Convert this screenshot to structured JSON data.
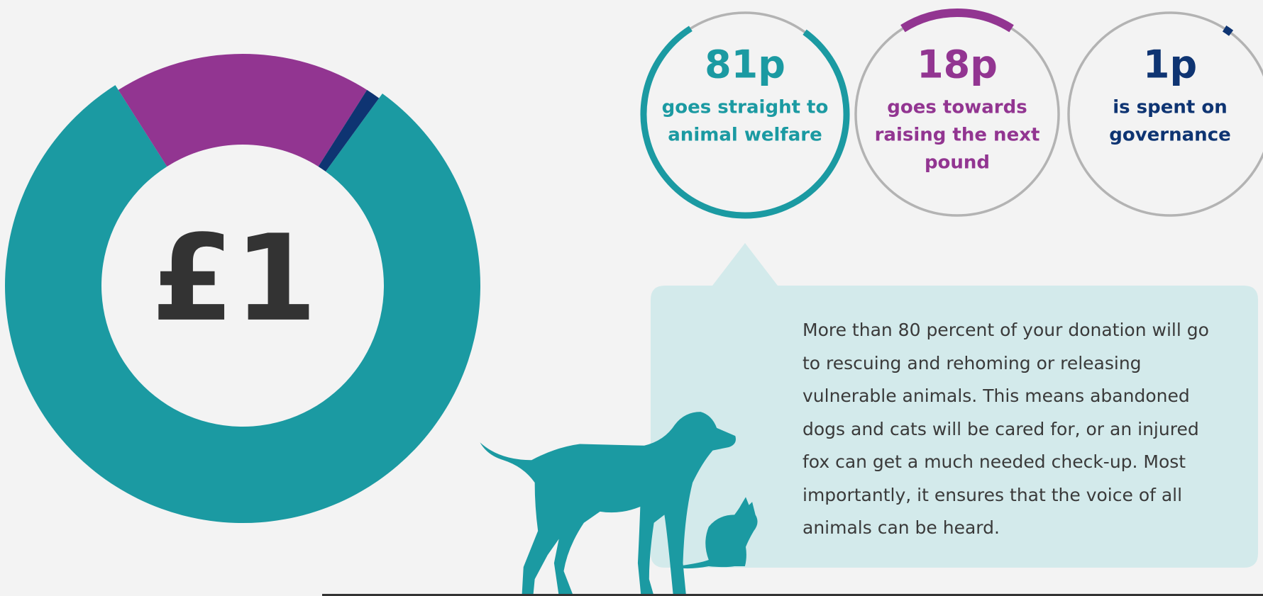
{
  "chart_data": {
    "type": "donut",
    "center_label": "£1",
    "categories": [
      [
        "goes straight to",
        "animal welfare"
      ],
      [
        "goes towards",
        "raising the next",
        "pound"
      ],
      [
        "is spent on",
        "governance"
      ]
    ],
    "values": [
      81,
      18,
      1
    ],
    "value_labels": [
      "81p",
      "18p",
      "1p"
    ],
    "colors": [
      "#1b9aa2",
      "#923591",
      "#0e3472"
    ]
  },
  "description": "More than 80 percent of your donation will go to rescuing and rehoming or releasing vulnerable animals. This means abandoned dogs and cats will be cared for, or an injured fox can get a much needed check-up. Most importantly, it ensures that the voice of all animals can be heard."
}
